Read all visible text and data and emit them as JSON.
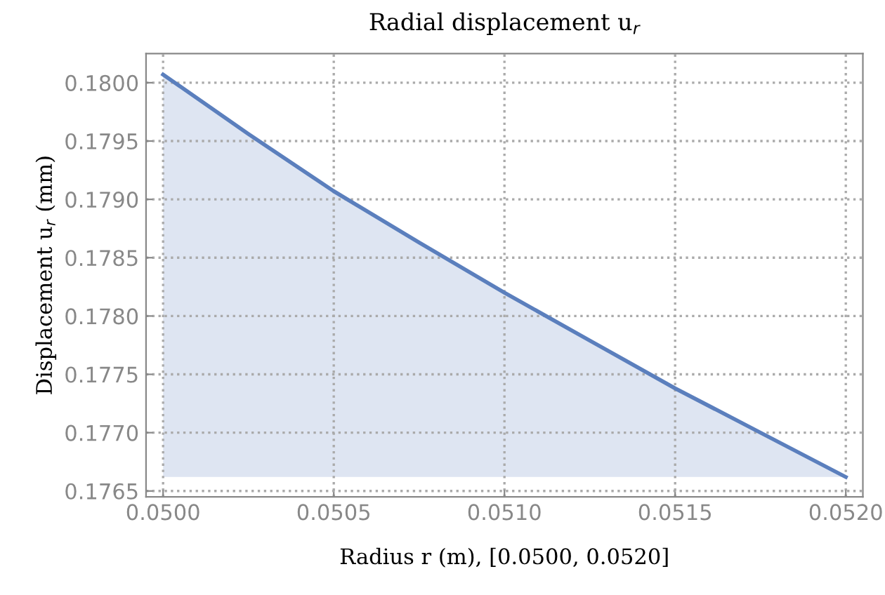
{
  "chart_data": {
    "type": "area",
    "title": "Radial displacement u$_{r}$",
    "xlabel": "Radius r (m), [0.0500, 0.0520]",
    "ylabel": "Displacement u$_{r}$ (mm)",
    "x": [
      0.05,
      0.05025,
      0.0505,
      0.05075,
      0.051,
      0.05125,
      0.0515,
      0.05175,
      0.052
    ],
    "series": [
      {
        "color": "#5b7fbd",
        "values": [
          0.18007,
          0.17956,
          0.17907,
          0.17863,
          0.1782,
          0.17779,
          0.17738,
          0.177,
          0.17662
        ]
      }
    ],
    "xlim": [
      0.04995,
      0.05205
    ],
    "ylim": [
      0.17645,
      0.18025
    ],
    "xticks": [
      {
        "value": 0.05,
        "label": "0.0500"
      },
      {
        "value": 0.0505,
        "label": "0.0505"
      },
      {
        "value": 0.051,
        "label": "0.0510"
      },
      {
        "value": 0.0515,
        "label": "0.0515"
      },
      {
        "value": 0.052,
        "label": "0.0520"
      }
    ],
    "yticks": [
      {
        "value": 0.1765,
        "label": "0.1765"
      },
      {
        "value": 0.177,
        "label": "0.1770"
      },
      {
        "value": 0.1775,
        "label": "0.1775"
      },
      {
        "value": 0.178,
        "label": "0.1780"
      },
      {
        "value": 0.1785,
        "label": "0.1785"
      },
      {
        "value": 0.179,
        "label": "0.1790"
      },
      {
        "value": 0.1795,
        "label": "0.1795"
      },
      {
        "value": 0.18,
        "label": "0.1800"
      }
    ],
    "grid": true,
    "line_style": "solid"
  }
}
